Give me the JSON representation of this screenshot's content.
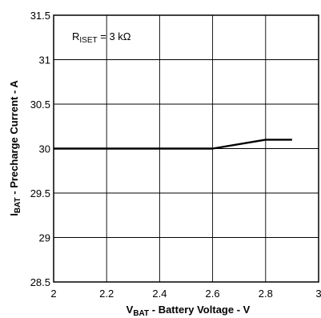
{
  "chart_data": {
    "type": "line",
    "x_axis": {
      "label_main": "V",
      "label_sub": "BAT",
      "label_rest": " - Battery Voltage - V",
      "range": [
        2,
        3
      ],
      "ticks": [
        2,
        2.2,
        2.4,
        2.6,
        2.8,
        3
      ],
      "tick_labels": [
        "2",
        "2.2",
        "2.4",
        "2.6",
        "2.8",
        "3"
      ]
    },
    "y_axis": {
      "label_main": "I",
      "label_sub": "BAT",
      "label_rest": " - Precharge Current - A",
      "range": [
        28.5,
        31.5
      ],
      "ticks": [
        28.5,
        29,
        29.5,
        30,
        30.5,
        31,
        31.5
      ],
      "tick_labels": [
        "28.5",
        "29",
        "29.5",
        "30",
        "30.5",
        "31",
        "31.5"
      ]
    },
    "grid": true,
    "annotation": {
      "main": "R",
      "sub": "ISET",
      "rest": " = 3 kΩ"
    },
    "series": [
      {
        "x": [
          2.0,
          2.6,
          2.8,
          2.9
        ],
        "y": [
          30.0,
          30.0,
          30.1,
          30.1
        ]
      }
    ]
  }
}
